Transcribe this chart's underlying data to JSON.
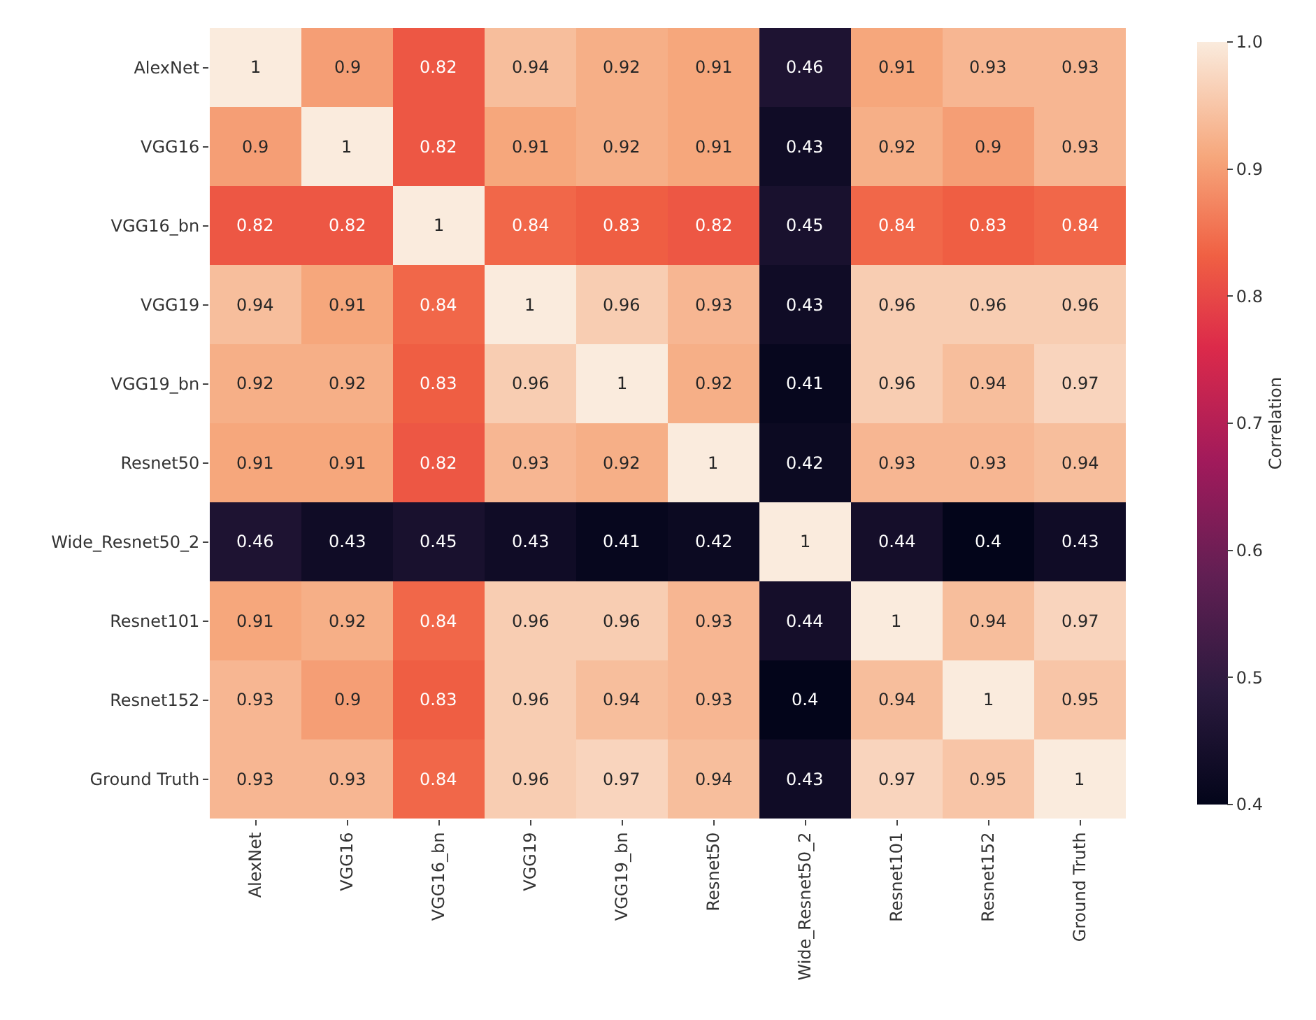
{
  "chart_data": {
    "type": "heatmap",
    "categories": [
      "AlexNet",
      "VGG16",
      "VGG16_bn",
      "VGG19",
      "VGG19_bn",
      "Resnet50",
      "Wide_Resnet50_2",
      "Resnet101",
      "Resnet152",
      "Ground Truth"
    ],
    "y_categories": [
      "AlexNet",
      "VGG16",
      "VGG16_bn",
      "VGG19",
      "VGG19_bn",
      "Resnet50",
      "Wide_Resnet50_2",
      "Resnet101",
      "Resnet152",
      "Ground Truth"
    ],
    "cells": [
      [
        1,
        0.9,
        0.82,
        0.94,
        0.92,
        0.91,
        0.46,
        0.91,
        0.93,
        0.93
      ],
      [
        0.9,
        1,
        0.82,
        0.91,
        0.92,
        0.91,
        0.43,
        0.92,
        0.9,
        0.93
      ],
      [
        0.82,
        0.82,
        1,
        0.84,
        0.83,
        0.82,
        0.45,
        0.84,
        0.83,
        0.84
      ],
      [
        0.94,
        0.91,
        0.84,
        1,
        0.96,
        0.93,
        0.43,
        0.96,
        0.96,
        0.96
      ],
      [
        0.92,
        0.92,
        0.83,
        0.96,
        1,
        0.92,
        0.41,
        0.96,
        0.94,
        0.97
      ],
      [
        0.91,
        0.91,
        0.82,
        0.93,
        0.92,
        1,
        0.42,
        0.93,
        0.93,
        0.94
      ],
      [
        0.46,
        0.43,
        0.45,
        0.43,
        0.41,
        0.42,
        1,
        0.44,
        0.4,
        0.43
      ],
      [
        0.91,
        0.92,
        0.84,
        0.96,
        0.96,
        0.93,
        0.44,
        1,
        0.94,
        0.97
      ],
      [
        0.93,
        0.9,
        0.83,
        0.96,
        0.94,
        0.93,
        0.4,
        0.94,
        1,
        0.95
      ],
      [
        0.93,
        0.93,
        0.84,
        0.96,
        0.97,
        0.94,
        0.43,
        0.97,
        0.95,
        1
      ]
    ],
    "clim": [
      0.4,
      1.0
    ],
    "cticks": [
      {
        "value": 0.4,
        "label": "0.4"
      },
      {
        "value": 0.5,
        "label": "0.5"
      },
      {
        "value": 0.6,
        "label": "0.6"
      },
      {
        "value": 0.7,
        "label": "0.7"
      },
      {
        "value": 0.8,
        "label": "0.8"
      },
      {
        "value": 0.9,
        "label": "0.9"
      },
      {
        "value": 1.0,
        "label": "1.0"
      }
    ],
    "clabel": "Correlation",
    "data_labels": true
  }
}
